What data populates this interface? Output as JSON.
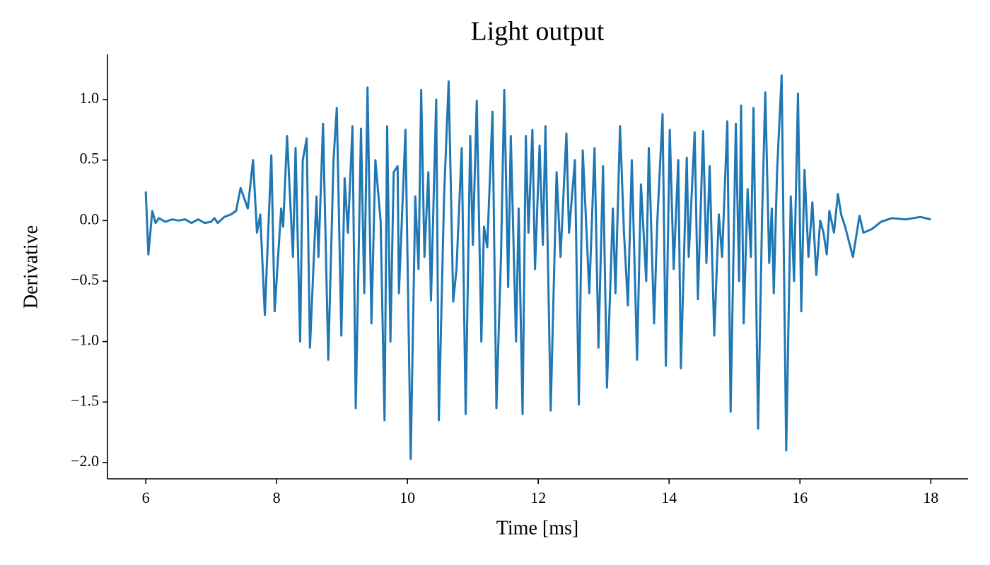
{
  "chart_data": {
    "type": "line",
    "title": "Light output",
    "xlabel": "Time [ms]",
    "ylabel": "Derivative",
    "xlim": [
      5.415,
      18.57
    ],
    "ylim": [
      -2.135,
      1.374
    ],
    "xticks": [
      6,
      8,
      10,
      12,
      14,
      16,
      18
    ],
    "yticks": [
      {
        "value": -2,
        "label": "−2.0"
      },
      {
        "value": -1.5,
        "label": "−1.5"
      },
      {
        "value": -1,
        "label": "−1.0"
      },
      {
        "value": -0.5,
        "label": "−0.5"
      },
      {
        "value": 0,
        "label": "0.0"
      },
      0.5,
      {
        "value": 1,
        "label": "1.0"
      }
    ],
    "grid": false,
    "series": [
      {
        "color": "#1f77b4",
        "x": [
          6.0,
          6.04,
          6.1,
          6.15,
          6.2,
          6.3,
          6.4,
          6.5,
          6.6,
          6.7,
          6.8,
          6.9,
          7.0,
          7.05,
          7.1,
          7.2,
          7.3,
          7.38,
          7.45,
          7.56,
          7.64,
          7.7,
          7.75,
          7.82,
          7.92,
          7.97,
          8.07,
          8.1,
          8.16,
          8.25,
          8.29,
          8.36,
          8.4,
          8.46,
          8.51,
          8.61,
          8.64,
          8.71,
          8.79,
          8.87,
          8.92,
          8.99,
          9.04,
          9.09,
          9.16,
          9.21,
          9.29,
          9.34,
          9.39,
          9.45,
          9.51,
          9.59,
          9.65,
          9.69,
          9.74,
          9.79,
          9.85,
          9.87,
          9.97,
          10.05,
          10.12,
          10.17,
          10.21,
          10.26,
          10.32,
          10.36,
          10.44,
          10.48,
          10.56,
          10.63,
          10.7,
          10.75,
          10.83,
          10.89,
          10.96,
          11.0,
          11.06,
          11.13,
          11.17,
          11.22,
          11.3,
          11.36,
          11.43,
          11.48,
          11.54,
          11.58,
          11.66,
          11.7,
          11.76,
          11.81,
          11.85,
          11.91,
          11.95,
          12.02,
          12.07,
          12.11,
          12.19,
          12.28,
          12.34,
          12.43,
          12.47,
          12.56,
          12.62,
          12.68,
          12.73,
          12.78,
          12.86,
          12.92,
          12.99,
          13.05,
          13.14,
          13.18,
          13.25,
          13.31,
          13.37,
          13.43,
          13.51,
          13.57,
          13.65,
          13.69,
          13.77,
          13.82,
          13.9,
          13.95,
          14.01,
          14.07,
          14.14,
          14.18,
          14.27,
          14.3,
          14.39,
          14.44,
          14.52,
          14.57,
          14.62,
          14.69,
          14.76,
          14.81,
          14.89,
          14.94,
          15.02,
          15.07,
          15.1,
          15.14,
          15.2,
          15.25,
          15.29,
          15.36,
          15.42,
          15.47,
          15.53,
          15.57,
          15.6,
          15.65,
          15.72,
          15.79,
          15.86,
          15.91,
          15.97,
          16.02,
          16.07,
          16.13,
          16.19,
          16.25,
          16.31,
          16.36,
          16.41,
          16.45,
          16.52,
          16.58,
          16.63,
          16.69,
          16.81,
          16.91,
          16.97,
          17.1,
          17.24,
          17.4,
          17.62,
          17.84,
          18.0
        ],
        "values": [
          0.24,
          -0.28,
          0.08,
          -0.02,
          0.02,
          -0.01,
          0.01,
          0.0,
          0.01,
          -0.02,
          0.01,
          -0.02,
          -0.01,
          0.02,
          -0.02,
          0.03,
          0.05,
          0.08,
          0.27,
          0.1,
          0.5,
          -0.1,
          0.05,
          -0.78,
          0.54,
          -0.75,
          0.1,
          -0.05,
          0.7,
          -0.3,
          0.6,
          -1.0,
          0.5,
          0.68,
          -1.05,
          0.2,
          -0.3,
          0.8,
          -1.15,
          0.5,
          0.93,
          -0.95,
          0.35,
          -0.1,
          0.78,
          -1.55,
          0.76,
          -0.6,
          1.1,
          -0.85,
          0.5,
          0.0,
          -1.65,
          0.78,
          -1.0,
          0.4,
          0.45,
          -0.6,
          0.75,
          -1.97,
          0.2,
          -0.4,
          1.08,
          -0.3,
          0.4,
          -0.66,
          1.0,
          -1.65,
          0.2,
          1.15,
          -0.67,
          -0.4,
          0.6,
          -1.6,
          0.7,
          -0.2,
          0.99,
          -1.0,
          -0.05,
          -0.22,
          0.9,
          -1.55,
          -0.3,
          1.08,
          -0.55,
          0.7,
          -1.0,
          0.1,
          -1.6,
          0.7,
          -0.1,
          0.75,
          -0.4,
          0.62,
          -0.2,
          0.78,
          -1.57,
          0.4,
          -0.3,
          0.72,
          -0.1,
          0.5,
          -1.52,
          0.58,
          0.0,
          -0.6,
          0.6,
          -1.05,
          0.45,
          -1.38,
          0.1,
          -0.6,
          0.78,
          -0.1,
          -0.7,
          0.5,
          -1.15,
          0.3,
          -0.5,
          0.6,
          -0.85,
          0.0,
          0.88,
          -1.2,
          0.75,
          -0.4,
          0.5,
          -1.22,
          0.52,
          -0.3,
          0.73,
          -0.65,
          0.74,
          -0.35,
          0.45,
          -0.95,
          0.05,
          -0.3,
          0.82,
          -1.58,
          0.8,
          -0.5,
          0.95,
          -0.85,
          0.26,
          -0.3,
          0.93,
          -1.72,
          0.0,
          1.06,
          -0.35,
          0.1,
          -0.6,
          0.4,
          1.2,
          -1.9,
          0.2,
          -0.5,
          1.05,
          -0.75,
          0.42,
          -0.3,
          0.15,
          -0.45,
          0.0,
          -0.1,
          -0.28,
          0.08,
          -0.1,
          0.22,
          0.05,
          -0.05,
          -0.3,
          0.04,
          -0.1,
          -0.07,
          -0.01,
          0.02,
          0.01,
          0.03,
          0.01
        ]
      }
    ]
  }
}
